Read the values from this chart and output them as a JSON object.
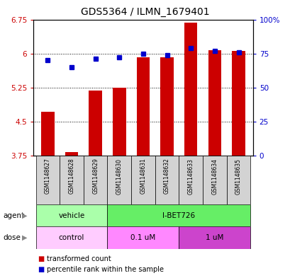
{
  "title": "GDS5364 / ILMN_1679401",
  "samples": [
    "GSM1148627",
    "GSM1148628",
    "GSM1148629",
    "GSM1148630",
    "GSM1148631",
    "GSM1148632",
    "GSM1148633",
    "GSM1148634",
    "GSM1148635"
  ],
  "bar_values": [
    4.72,
    3.83,
    5.18,
    5.25,
    5.92,
    5.92,
    6.68,
    6.08,
    6.05
  ],
  "percentile_values": [
    70,
    65,
    71,
    72,
    75,
    74,
    79,
    77,
    76
  ],
  "ylim_left": [
    3.75,
    6.75
  ],
  "ylim_right": [
    0,
    100
  ],
  "yticks_left": [
    3.75,
    4.5,
    5.25,
    6.0,
    6.75
  ],
  "ytick_labels_left": [
    "3.75",
    "4.5",
    "5.25",
    "6",
    "6.75"
  ],
  "yticks_right": [
    0,
    25,
    50,
    75,
    100
  ],
  "ytick_labels_right": [
    "0",
    "25",
    "50",
    "75",
    "100%"
  ],
  "bar_color": "#cc0000",
  "dot_color": "#0000cc",
  "agent_groups": [
    {
      "label": "vehicle",
      "start": 0,
      "end": 3,
      "color": "#aaffaa"
    },
    {
      "label": "I-BET726",
      "start": 3,
      "end": 9,
      "color": "#66ee66"
    }
  ],
  "dose_groups": [
    {
      "label": "control",
      "start": 0,
      "end": 3,
      "color": "#ffccff"
    },
    {
      "label": "0.1 uM",
      "start": 3,
      "end": 6,
      "color": "#ff88ff"
    },
    {
      "label": "1 uM",
      "start": 6,
      "end": 9,
      "color": "#cc44cc"
    }
  ],
  "legend_items": [
    {
      "label": "transformed count",
      "color": "#cc0000"
    },
    {
      "label": "percentile rank within the sample",
      "color": "#0000cc"
    }
  ],
  "bg_color": "#ffffff",
  "tick_label_color_left": "#cc0000",
  "tick_label_color_right": "#0000cc",
  "title_fontsize": 10,
  "axis_fontsize": 7.5,
  "bar_bottom": 3.75
}
